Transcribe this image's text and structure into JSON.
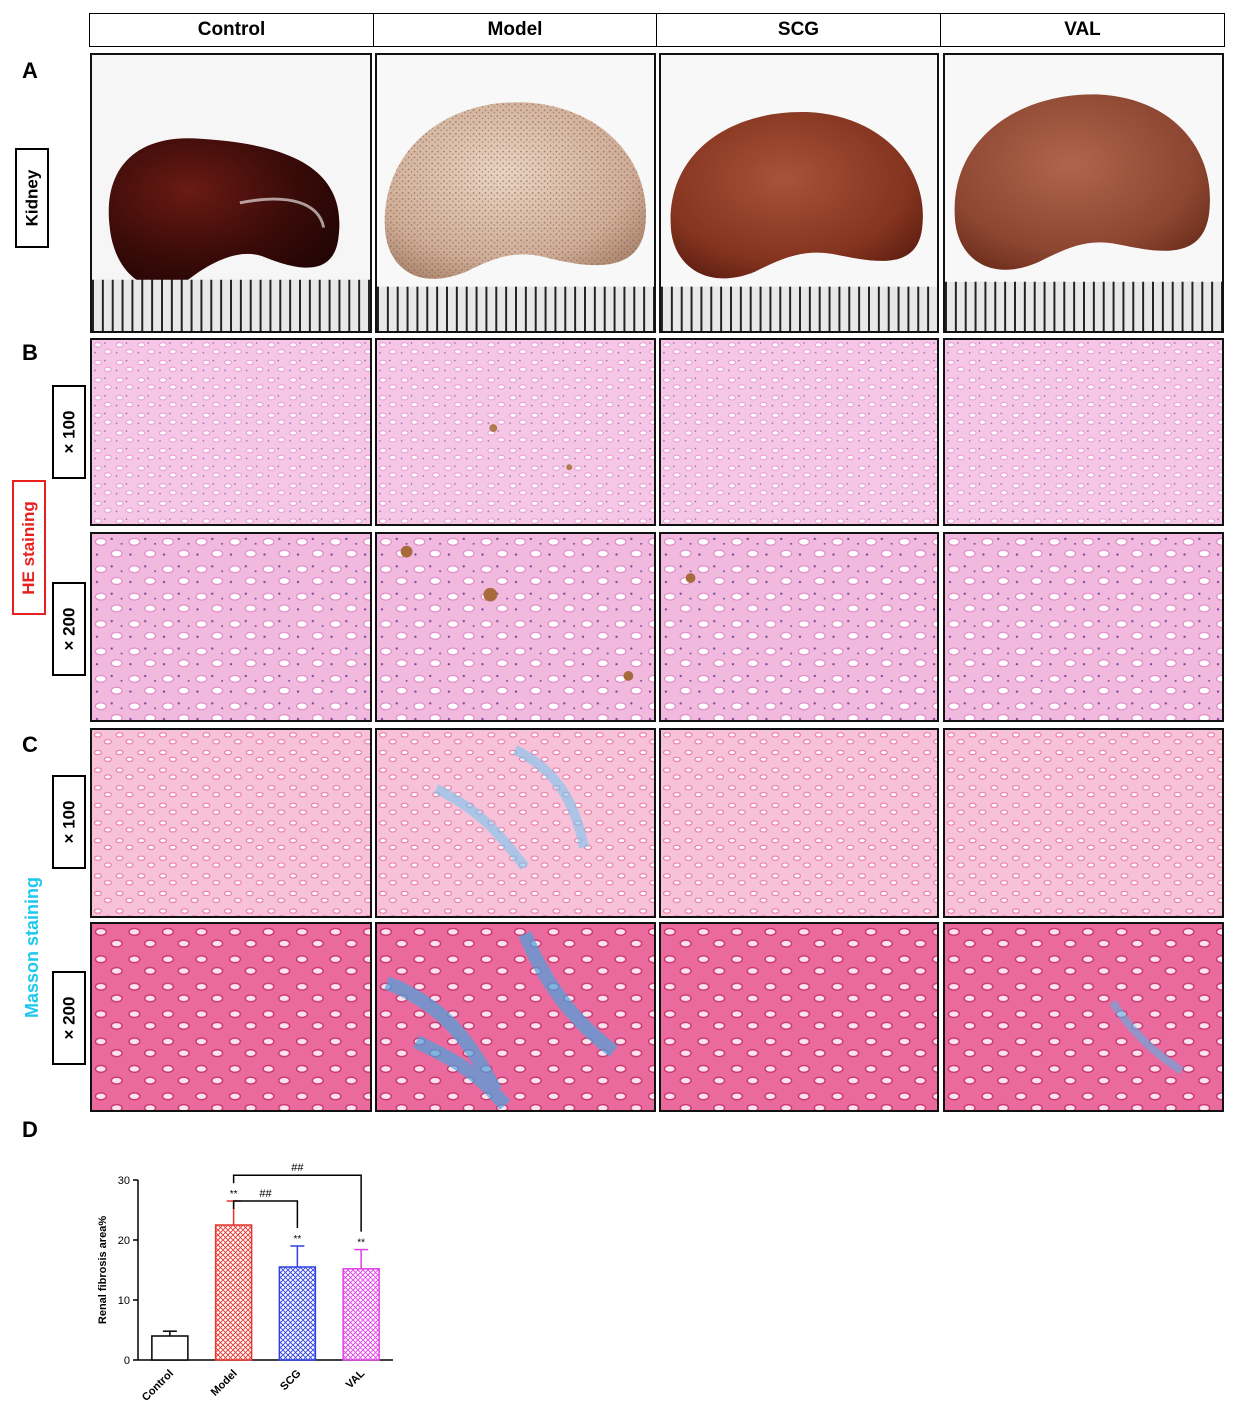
{
  "header": {
    "columns": [
      "Control",
      "Model",
      "SCG",
      "VAL"
    ]
  },
  "panels": {
    "a": "A",
    "b": "B",
    "c": "C",
    "d": "D"
  },
  "row_labels": {
    "kidney": "Kidney",
    "he": "HE staining",
    "masson": "Masson staining",
    "mag100": "× 100",
    "mag200": "× 200"
  },
  "colors": {
    "he_label": "#e8211e",
    "masson_label": "#1ec8ee",
    "control": "#000000",
    "model": "#e8352f",
    "scg": "#2f3fe0",
    "val": "#e040e8"
  },
  "chart_data": {
    "type": "bar",
    "categories": [
      "Control",
      "Model",
      "SCG",
      "VAL"
    ],
    "values": [
      4.0,
      22.5,
      15.5,
      15.2
    ],
    "errors": [
      0.8,
      4.0,
      3.5,
      3.2
    ],
    "significance": [
      "",
      "**",
      "**",
      "**"
    ],
    "comparisons": [
      {
        "from": "Model",
        "to": "SCG",
        "label": "##"
      },
      {
        "from": "Model",
        "to": "VAL",
        "label": "##"
      }
    ],
    "ylabel": "Renal fibrosis area%",
    "ylim": [
      0,
      30
    ],
    "yticks": [
      0,
      10,
      20,
      30
    ],
    "colors": [
      "#000000",
      "#e8352f",
      "#2f3fe0",
      "#e040e8"
    ],
    "fill_pattern": "crosshatch"
  }
}
